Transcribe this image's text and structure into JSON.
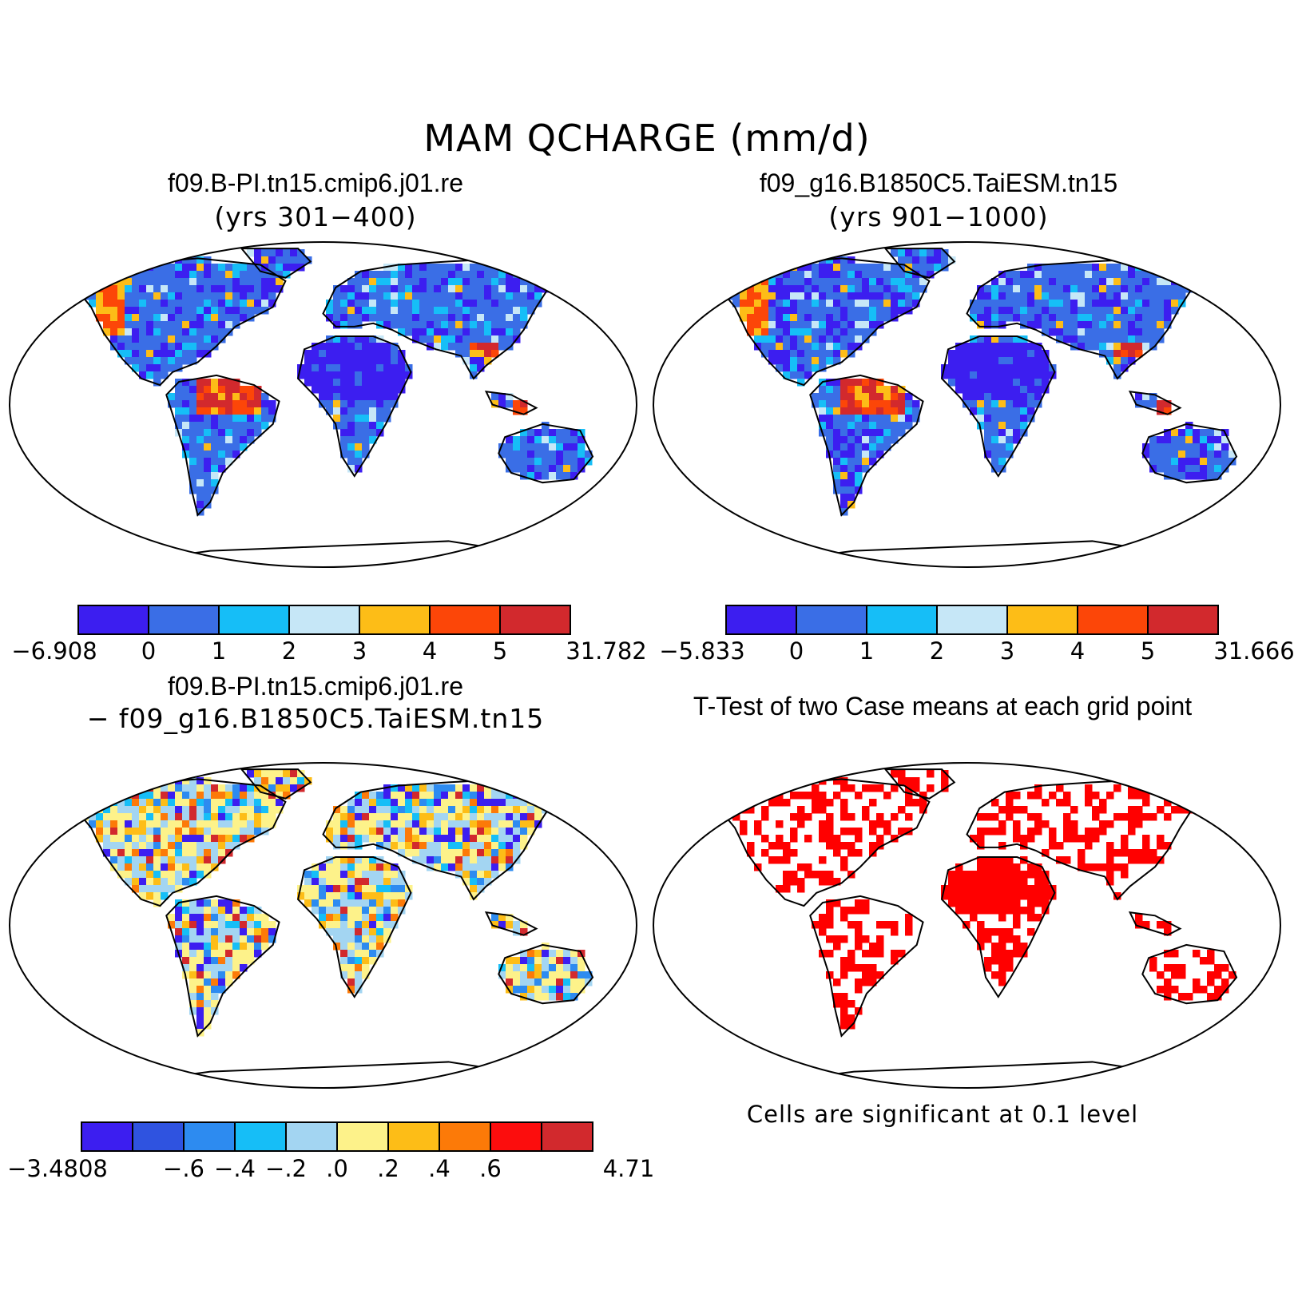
{
  "figure": {
    "title": "MAM QCHARGE (mm/d)"
  },
  "panels": [
    {
      "id": "case1",
      "title": "f09.B-PI.tn15.cmip6.j01.re",
      "subtitle": "(yrs 301−400)",
      "colorbar": {
        "colors": [
          "#3c1ef0",
          "#3a6ee6",
          "#16bef7",
          "#c6e7f7",
          "#fdbd17",
          "#fc4608",
          "#d2292d"
        ],
        "labels": [
          "−6.908",
          "0",
          "1",
          "2",
          "3",
          "4",
          "5",
          "31.782"
        ]
      }
    },
    {
      "id": "case2",
      "title": "f09_g16.B1850C5.TaiESM.tn15",
      "subtitle": "(yrs 901−1000)",
      "colorbar": {
        "colors": [
          "#3c1ef0",
          "#3a6ee6",
          "#16bef7",
          "#c6e7f7",
          "#fdbd17",
          "#fc4608",
          "#d2292d"
        ],
        "labels": [
          "−5.833",
          "0",
          "1",
          "2",
          "3",
          "4",
          "5",
          "31.666"
        ]
      }
    },
    {
      "id": "diff",
      "title": "f09.B-PI.tn15.cmip6.j01.re",
      "subtitle": "− f09_g16.B1850C5.TaiESM.tn15",
      "colorbar": {
        "colors": [
          "#3c1ef0",
          "#2f53e0",
          "#2d8bf0",
          "#16bef7",
          "#a3d5f2",
          "#fdf28a",
          "#fdbd17",
          "#fc7a08",
          "#fc0d0d",
          "#d2292d"
        ],
        "labels": [
          "−3.4808",
          "",
          "−.6",
          "−.4",
          "−.2",
          ".0",
          ".2",
          ".4",
          ".6",
          "",
          "4.71"
        ]
      }
    },
    {
      "id": "ttest",
      "title": "T-Test of two Case means at each grid point",
      "note": "Cells are significant at 0.1 level",
      "significant_color": "#ff0000"
    }
  ]
}
